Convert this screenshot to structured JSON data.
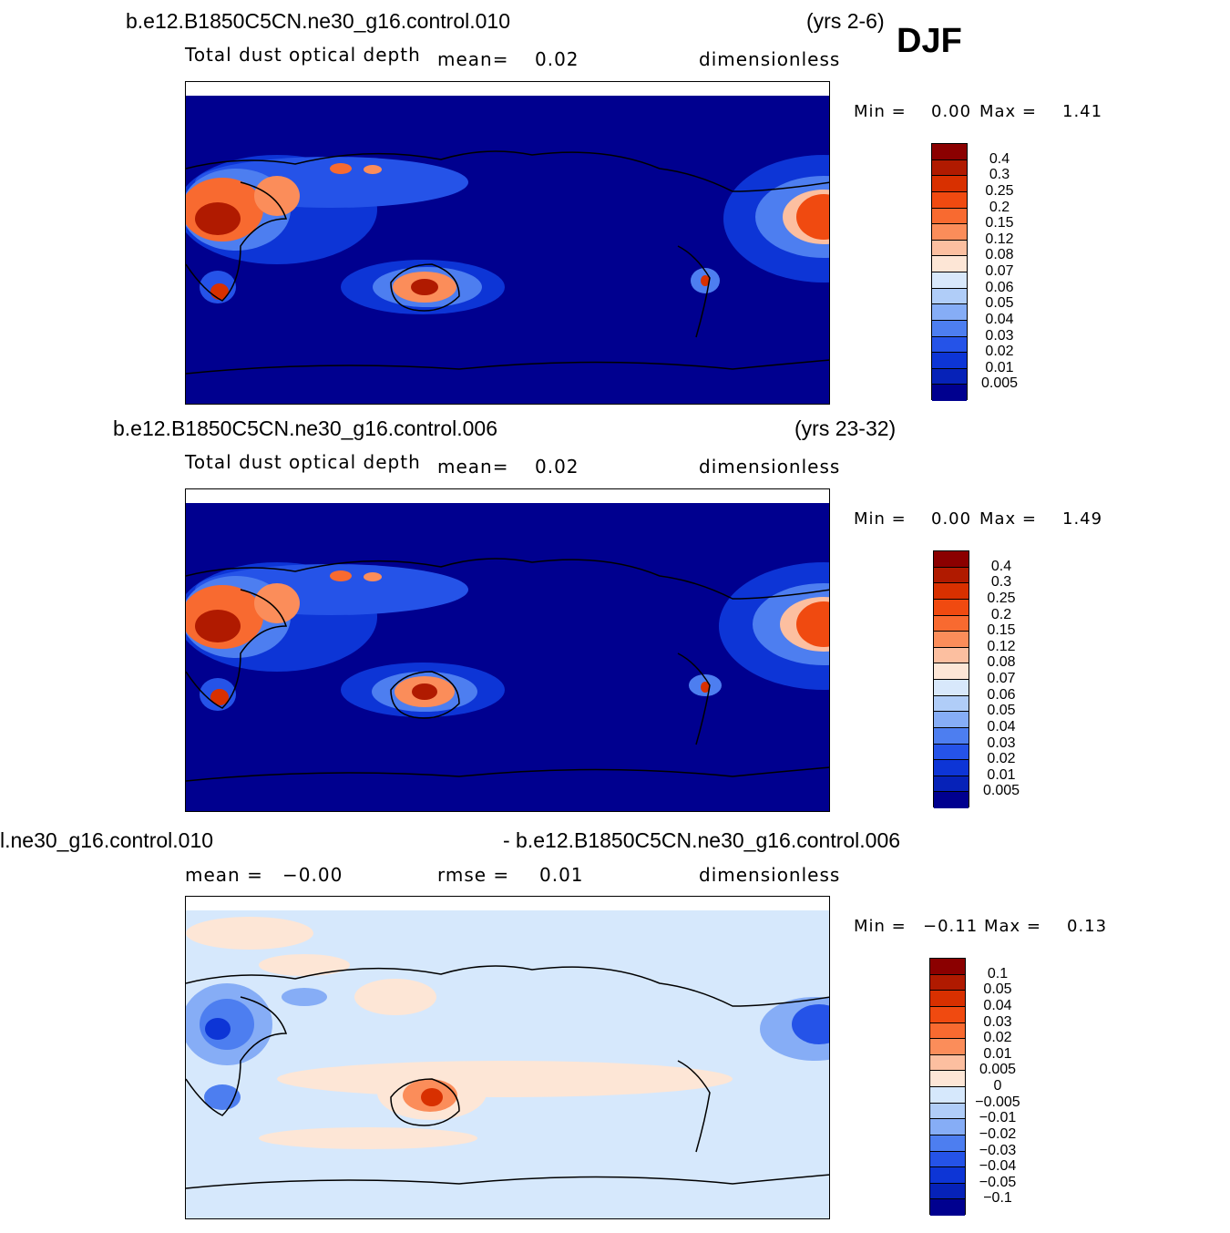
{
  "season": "DJF",
  "panels": [
    {
      "case_title": "b.e12.B1850C5CN.ne30_g16.control.010",
      "years": "(yrs 2-6)",
      "variable": "Total  dust  optical  depth",
      "mean_label": "mean=",
      "mean_value": "0.02",
      "units": "dimensionless",
      "min_label": "Min  =",
      "min_value": "0.00",
      "max_label": "Max  =",
      "max_value": "1.41",
      "colorbar_labels": [
        "0.4",
        "0.3",
        "0.25",
        "0.2",
        "0.15",
        "0.12",
        "0.08",
        "0.07",
        "0.06",
        "0.05",
        "0.04",
        "0.03",
        "0.02",
        "0.01",
        "0.005"
      ]
    },
    {
      "case_title": "b.e12.B1850C5CN.ne30_g16.control.006",
      "years": "(yrs 23-32)",
      "variable": "Total  dust  optical  depth",
      "mean_label": "mean=",
      "mean_value": "0.02",
      "units": "dimensionless",
      "min_label": "Min  =",
      "min_value": "0.00",
      "max_label": "Max  =",
      "max_value": "1.49",
      "colorbar_labels": [
        "0.4",
        "0.3",
        "0.25",
        "0.2",
        "0.15",
        "0.12",
        "0.08",
        "0.07",
        "0.06",
        "0.05",
        "0.04",
        "0.03",
        "0.02",
        "0.01",
        "0.005"
      ]
    },
    {
      "case_title_left": "l.ne30_g16.control.010",
      "case_title_right": "- b.e12.B1850C5CN.ne30_g16.control.006",
      "mean_label": "mean  =",
      "mean_value": "−0.00",
      "rmse_label": "rmse  =",
      "rmse_value": "0.01",
      "units": "dimensionless",
      "min_label": "Min  =",
      "min_value": "−0.11",
      "max_label": "Max  =",
      "max_value": "0.13",
      "colorbar_labels": [
        "0.1",
        "0.05",
        "0.04",
        "0.03",
        "0.02",
        "0.01",
        "0.005",
        "0",
        "−0.005",
        "−0.01",
        "−0.02",
        "−0.03",
        "−0.04",
        "−0.05",
        "−0.1"
      ]
    }
  ],
  "colors": {
    "abs_scale": [
      "#8b0000",
      "#b01a00",
      "#d83000",
      "#f04a10",
      "#f86a30",
      "#fb8d5a",
      "#fcbfa0",
      "#fde6d6",
      "#d8e8fb",
      "#b0cdf8",
      "#86adf6",
      "#4d7ef0",
      "#2553e8",
      "#0d35d6",
      "#0622b8",
      "#00008f"
    ],
    "diff_scale": [
      "#8b0000",
      "#b01a00",
      "#d83000",
      "#f04a10",
      "#f86a30",
      "#fb8d5a",
      "#fcbfa0",
      "#fde6d6",
      "#d6e8fc",
      "#b0cdf8",
      "#86adf6",
      "#4d7ef0",
      "#2553e8",
      "#0d35d6",
      "#0622b8",
      "#00008f"
    ],
    "ocean_abs": "#00008f",
    "ocean_diff": "#d6e8fc"
  }
}
